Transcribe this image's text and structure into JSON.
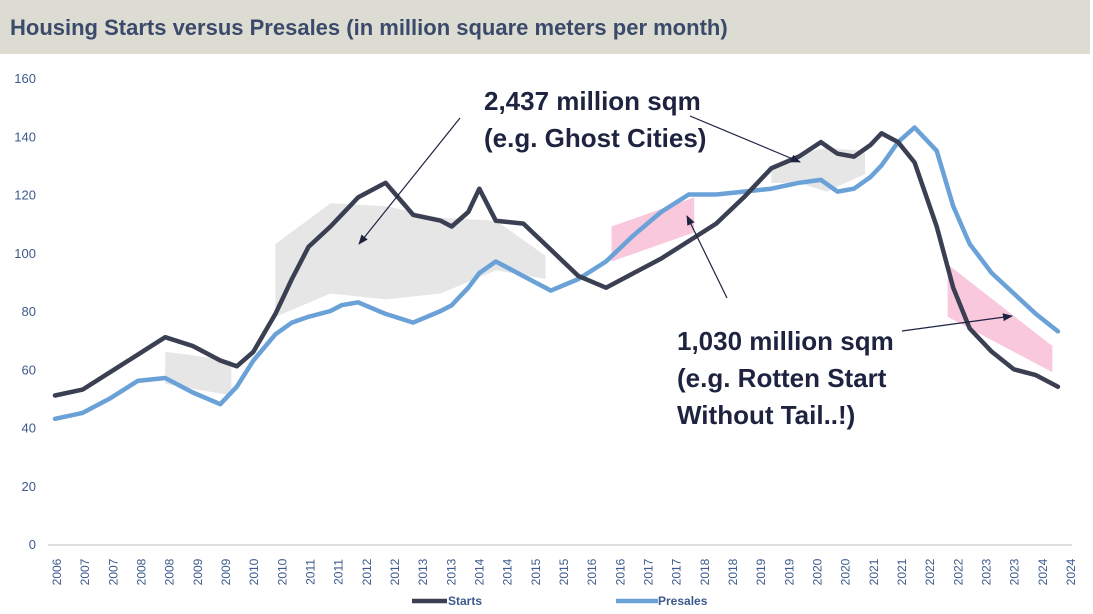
{
  "title": "Housing Starts versus Presales (in million square meters per month)",
  "colors": {
    "starts": "#3b3f52",
    "presales": "#6aa2d8",
    "gray_fill": "#e6e6e6",
    "pink_fill": "#f9c8dc",
    "axis_text": "#3d5a8c",
    "title_bg": "#dcdcd2"
  },
  "chart_data": {
    "type": "line",
    "title": "Housing Starts versus Presales (in million square meters per month)",
    "xlabel": "",
    "ylabel": "",
    "ylim": [
      0,
      160
    ],
    "xlim": [
      2006.0,
      2024.42
    ],
    "yticks": [
      "0",
      "20",
      "40",
      "60",
      "80",
      "100",
      "120",
      "140",
      "160"
    ],
    "xtick_labels": [
      "2006",
      "2007",
      "2007",
      "2008",
      "2008",
      "2009",
      "2009",
      "2010",
      "2010",
      "2011",
      "2011",
      "2012",
      "2012",
      "2013",
      "2013",
      "2014",
      "2014",
      "2015",
      "2015",
      "2016",
      "2016",
      "2017",
      "2017",
      "2018",
      "2018",
      "2019",
      "2019",
      "2020",
      "2020",
      "2021",
      "2021",
      "2022",
      "2022",
      "2023",
      "2023",
      "2024",
      "2024"
    ],
    "grid": false,
    "legend": {
      "position": "bottom",
      "entries": [
        "Starts",
        "Presales"
      ]
    },
    "series": [
      {
        "name": "Starts",
        "x": [
          2006.0,
          2006.5,
          2007.0,
          2007.5,
          2008.0,
          2008.5,
          2009.0,
          2009.3,
          2009.6,
          2010.0,
          2010.3,
          2010.6,
          2011.0,
          2011.2,
          2011.5,
          2012.0,
          2012.5,
          2013.0,
          2013.2,
          2013.5,
          2013.7,
          2014.0,
          2014.5,
          2015.0,
          2015.5,
          2016.0,
          2016.5,
          2017.0,
          2017.5,
          2018.0,
          2018.5,
          2019.0,
          2019.5,
          2019.9,
          2020.2,
          2020.5,
          2020.8,
          2021.0,
          2021.3,
          2021.6,
          2022.0,
          2022.3,
          2022.6,
          2023.0,
          2023.4,
          2023.8,
          2024.2
        ],
        "values": [
          51,
          53,
          59,
          65,
          71,
          68,
          63,
          61,
          66,
          79,
          91,
          102,
          109,
          113,
          119,
          124,
          113,
          111,
          109,
          114,
          122,
          111,
          110,
          101,
          92,
          88,
          93,
          98,
          104,
          110,
          119,
          129,
          133,
          138,
          134,
          133,
          137,
          141,
          138,
          131,
          109,
          88,
          74,
          66,
          60,
          58,
          54
        ]
      },
      {
        "name": "Presales",
        "x": [
          2006.0,
          2006.5,
          2007.0,
          2007.5,
          2008.0,
          2008.5,
          2009.0,
          2009.3,
          2009.6,
          2010.0,
          2010.3,
          2010.6,
          2011.0,
          2011.2,
          2011.5,
          2012.0,
          2012.5,
          2013.0,
          2013.2,
          2013.5,
          2013.7,
          2014.0,
          2014.5,
          2015.0,
          2015.5,
          2016.0,
          2016.5,
          2017.0,
          2017.5,
          2018.0,
          2018.5,
          2019.0,
          2019.5,
          2019.9,
          2020.2,
          2020.5,
          2020.8,
          2021.0,
          2021.3,
          2021.6,
          2022.0,
          2022.3,
          2022.6,
          2023.0,
          2023.4,
          2023.8,
          2024.2
        ],
        "values": [
          43,
          45,
          50,
          56,
          57,
          52,
          48,
          54,
          63,
          72,
          76,
          78,
          80,
          82,
          83,
          79,
          76,
          80,
          82,
          88,
          93,
          97,
          92,
          87,
          91,
          97,
          106,
          114,
          120,
          120,
          121,
          122,
          124,
          125,
          121,
          122,
          126,
          130,
          138,
          143,
          135,
          116,
          103,
          93,
          86,
          79,
          73
        ]
      }
    ],
    "bands": [
      {
        "fill": "gray",
        "x": [
          2008.0,
          2009.2
        ],
        "upper": [
          66,
          63
        ],
        "lower": [
          55,
          51
        ]
      },
      {
        "fill": "gray",
        "x": [
          2010.0,
          2011.0,
          2012.0,
          2013.0,
          2014.0,
          2014.9
        ],
        "upper": [
          103,
          117,
          116,
          112,
          111,
          99
        ],
        "lower": [
          78,
          86,
          84,
          86,
          94,
          91
        ]
      },
      {
        "fill": "gray",
        "x": [
          2019.0,
          2019.5,
          2020.0,
          2020.7
        ],
        "upper": [
          130,
          134,
          136,
          135
        ],
        "lower": [
          124,
          124,
          121,
          127
        ]
      },
      {
        "fill": "pink",
        "x": [
          2016.1,
          2017.6
        ],
        "upper": [
          109,
          119
        ],
        "lower": [
          97,
          107
        ]
      },
      {
        "fill": "pink",
        "x": [
          2022.2,
          2024.1
        ],
        "upper": [
          96,
          68
        ],
        "lower": [
          78,
          59
        ]
      }
    ],
    "annotations": [
      {
        "lines": [
          "2,437 million sqm",
          "(e.g. Ghost Cities)"
        ]
      },
      {
        "lines": [
          "1,030 million sqm",
          "(e.g. Rotten Start",
          "Without Tail..!)"
        ]
      }
    ]
  }
}
